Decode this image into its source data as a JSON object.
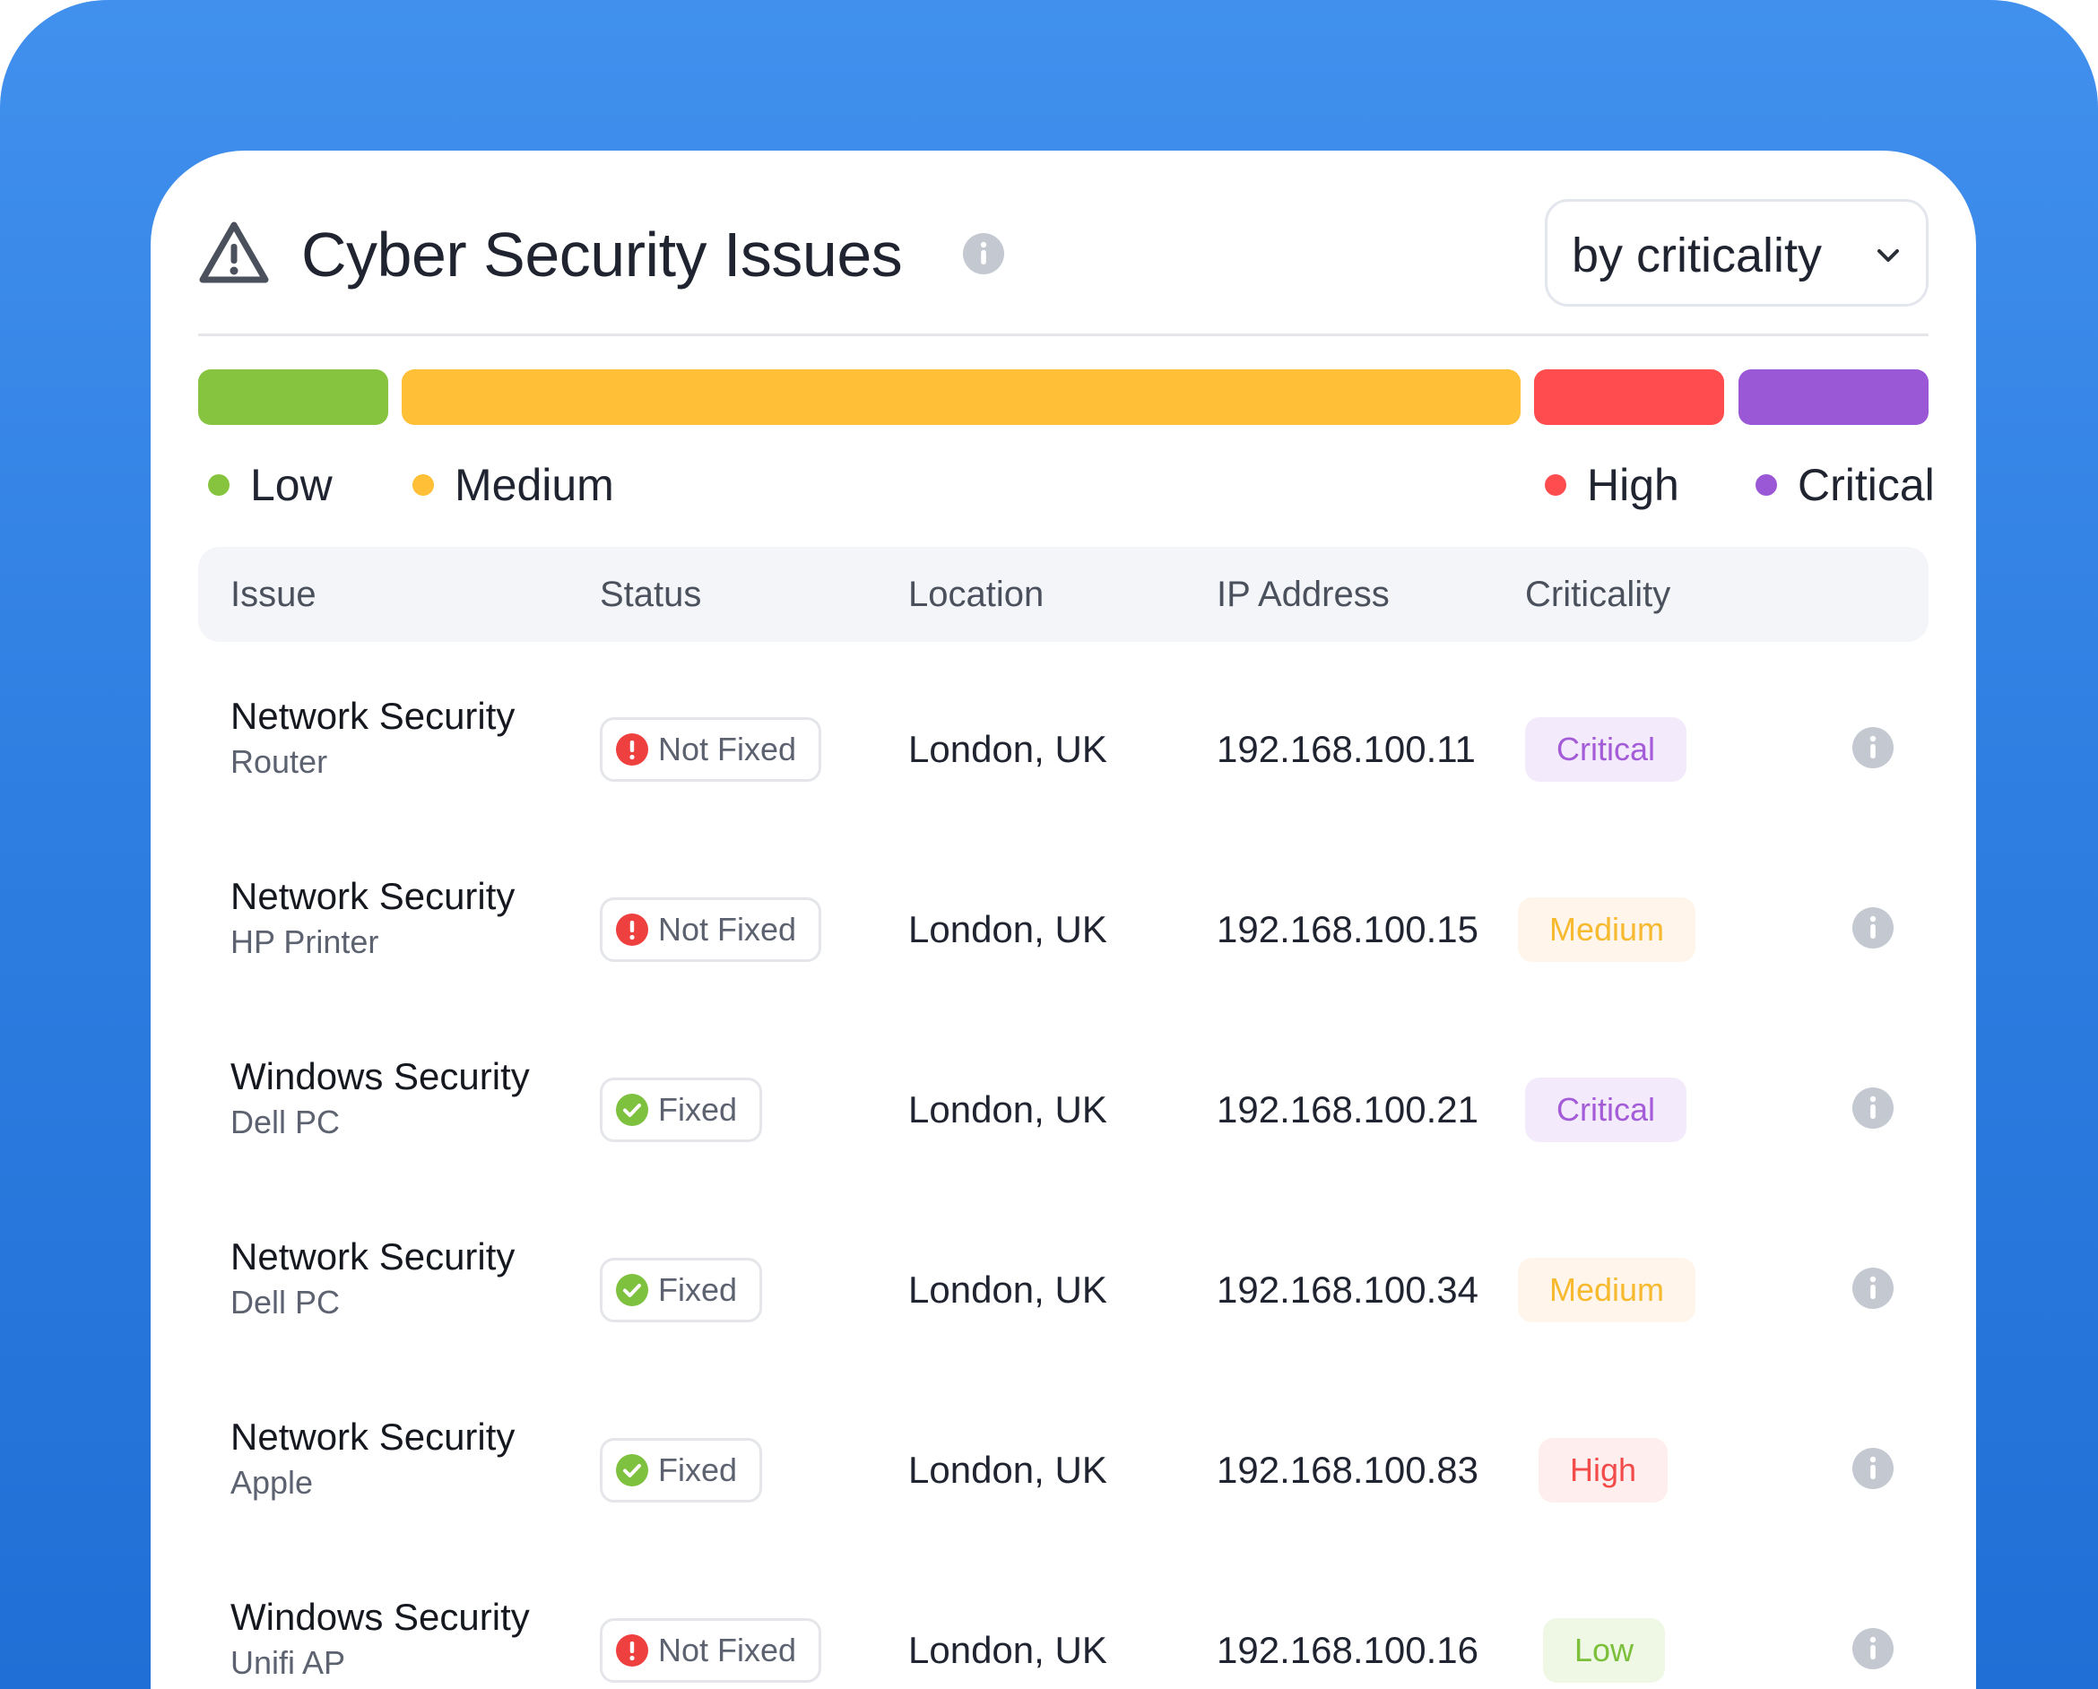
{
  "header": {
    "title": "Cyber Security Issues",
    "title_icon": "warning-triangle-icon",
    "info_icon": "info-icon",
    "sort_select": {
      "selected": "by criticality",
      "icon": "chevron-down-icon"
    }
  },
  "colors": {
    "low": "#86c440",
    "medium": "#ffbf36",
    "high": "#ff4d4f",
    "critical": "#9a57d6",
    "low_bg": "#eef8e4",
    "medium_bg": "#fff5ea",
    "high_bg": "#ffeeee",
    "critical_bg": "#f3ebfb",
    "critical_text": "#a45bd8",
    "medium_text": "#f7b92d",
    "high_text": "#f34a4a",
    "low_text": "#7cbf3a",
    "not_fixed": "#ef4040",
    "fixed": "#7dc13f"
  },
  "distribution": [
    {
      "level": "Low",
      "share": 0.107
    },
    {
      "level": "Medium",
      "share": 0.632
    },
    {
      "level": "High",
      "share": 0.107
    },
    {
      "level": "Critical",
      "share": 0.107
    }
  ],
  "legend": [
    "Low",
    "Medium",
    "High",
    "Critical"
  ],
  "table": {
    "columns": [
      "Issue",
      "Status",
      "Location",
      "IP Address",
      "Criticality"
    ],
    "rows": [
      {
        "issue": "Network Security",
        "device": "Router",
        "status": "Not Fixed",
        "location": "London, UK",
        "ip": "192.168.100.11",
        "criticality": "Critical"
      },
      {
        "issue": "Network Security",
        "device": "HP Printer",
        "status": "Not Fixed",
        "location": "London, UK",
        "ip": "192.168.100.15",
        "criticality": "Medium"
      },
      {
        "issue": "Windows Security",
        "device": "Dell PC",
        "status": "Fixed",
        "location": "London, UK",
        "ip": "192.168.100.21",
        "criticality": "Critical"
      },
      {
        "issue": "Network Security",
        "device": "Dell PC",
        "status": "Fixed",
        "location": "London, UK",
        "ip": "192.168.100.34",
        "criticality": "Medium"
      },
      {
        "issue": "Network Security",
        "device": "Apple",
        "status": "Fixed",
        "location": "London, UK",
        "ip": "192.168.100.83",
        "criticality": "High"
      },
      {
        "issue": "Windows Security",
        "device": "Unifi AP",
        "status": "Not Fixed",
        "location": "London, UK",
        "ip": "192.168.100.16",
        "criticality": "Low"
      }
    ]
  }
}
